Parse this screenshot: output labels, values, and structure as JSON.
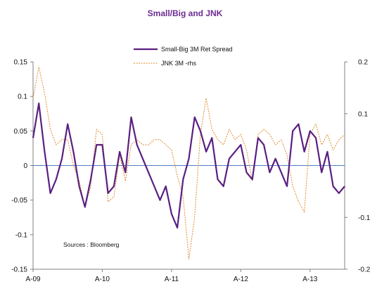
{
  "chart_data": {
    "type": "line",
    "title": "Small/Big and JNK",
    "source_note": "Sources : Bloomberg",
    "x_tick_labels": [
      "A-09",
      "A-10",
      "A-11",
      "A-12",
      "A-13"
    ],
    "x_range": [
      "2009-04",
      "2013-10"
    ],
    "y_left": {
      "ylim": [
        -0.15,
        0.15
      ],
      "ticks": [
        "0.15",
        "0.1",
        "0.05",
        "0",
        "-0.05",
        "-0.1",
        "-0.15"
      ],
      "tick_values": [
        0.15,
        0.1,
        0.05,
        0,
        -0.05,
        -0.1,
        -0.15
      ]
    },
    "y_right": {
      "ylim": [
        -0.2,
        0.2
      ],
      "ticks": [
        "0.2",
        "0.1",
        "-0.1",
        "-0.2"
      ],
      "tick_values": [
        0.2,
        0.1,
        -0.1,
        -0.2
      ]
    },
    "legend_placement": "top-center",
    "colors": {
      "series_primary": "#5a1f82",
      "series_secondary": "#e08a2c",
      "zero_line": "#4f81bd",
      "axis": "#808080"
    },
    "series": [
      {
        "name": "Small-Big 3M Ret Spread",
        "axis": "left",
        "style": "solid",
        "x": [
          "2009-04",
          "2009-05",
          "2009-06",
          "2009-07",
          "2009-08",
          "2009-09",
          "2009-10",
          "2009-11",
          "2009-12",
          "2010-01",
          "2010-02",
          "2010-03",
          "2010-04",
          "2010-05",
          "2010-06",
          "2010-07",
          "2010-08",
          "2010-09",
          "2010-10",
          "2010-11",
          "2010-12",
          "2011-01",
          "2011-02",
          "2011-03",
          "2011-04",
          "2011-05",
          "2011-06",
          "2011-07",
          "2011-08",
          "2011-09",
          "2011-10",
          "2011-11",
          "2011-12",
          "2012-01",
          "2012-02",
          "2012-03",
          "2012-04",
          "2012-05",
          "2012-06",
          "2012-07",
          "2012-08",
          "2012-09",
          "2012-10",
          "2012-11",
          "2012-12",
          "2013-01",
          "2013-02",
          "2013-03",
          "2013-04",
          "2013-05",
          "2013-06",
          "2013-07",
          "2013-08",
          "2013-09",
          "2013-10"
        ],
        "values": [
          0.04,
          0.09,
          0.02,
          -0.04,
          -0.02,
          0.01,
          0.06,
          0.02,
          -0.03,
          -0.06,
          -0.02,
          0.03,
          0.03,
          -0.04,
          -0.03,
          0.02,
          -0.01,
          0.07,
          0.03,
          0.01,
          -0.01,
          -0.03,
          -0.05,
          -0.03,
          -0.07,
          -0.09,
          -0.02,
          0.01,
          0.07,
          0.05,
          0.02,
          0.04,
          -0.02,
          -0.03,
          0.01,
          0.02,
          0.03,
          -0.01,
          -0.02,
          0.04,
          0.03,
          -0.01,
          0.01,
          -0.01,
          -0.03,
          0.05,
          0.06,
          0.02,
          0.05,
          0.04,
          -0.01,
          0.02,
          -0.03,
          -0.04,
          -0.03
        ]
      },
      {
        "name": "JNK 3M -rhs",
        "axis": "right",
        "style": "dashed",
        "x": [
          "2009-04",
          "2009-05",
          "2009-06",
          "2009-07",
          "2009-08",
          "2009-09",
          "2009-10",
          "2009-11",
          "2009-12",
          "2010-01",
          "2010-02",
          "2010-03",
          "2010-04",
          "2010-05",
          "2010-06",
          "2010-07",
          "2010-08",
          "2010-09",
          "2010-10",
          "2010-11",
          "2010-12",
          "2011-01",
          "2011-02",
          "2011-03",
          "2011-04",
          "2011-05",
          "2011-06",
          "2011-07",
          "2011-08",
          "2011-09",
          "2011-10",
          "2011-11",
          "2011-12",
          "2012-01",
          "2012-02",
          "2012-03",
          "2012-04",
          "2012-05",
          "2012-06",
          "2012-07",
          "2012-08",
          "2012-09",
          "2012-10",
          "2012-11",
          "2012-12",
          "2013-01",
          "2013-02",
          "2013-03",
          "2013-04",
          "2013-05",
          "2013-06",
          "2013-07",
          "2013-08",
          "2013-09",
          "2013-10"
        ],
        "values": [
          0.13,
          0.19,
          0.14,
          0.07,
          0.04,
          0.05,
          0.05,
          0.0,
          -0.03,
          -0.08,
          -0.04,
          0.07,
          0.06,
          -0.07,
          -0.06,
          0.02,
          -0.03,
          0.04,
          0.05,
          0.04,
          0.04,
          0.05,
          0.05,
          0.04,
          0.03,
          -0.02,
          -0.06,
          -0.18,
          -0.1,
          0.06,
          0.13,
          0.07,
          0.05,
          0.04,
          0.07,
          0.05,
          0.06,
          0.03,
          -0.03,
          0.06,
          0.07,
          0.06,
          0.04,
          0.05,
          0.02,
          -0.04,
          -0.07,
          -0.09,
          0.06,
          0.08,
          0.04,
          0.06,
          0.03,
          0.05,
          0.06
        ]
      }
    ]
  }
}
